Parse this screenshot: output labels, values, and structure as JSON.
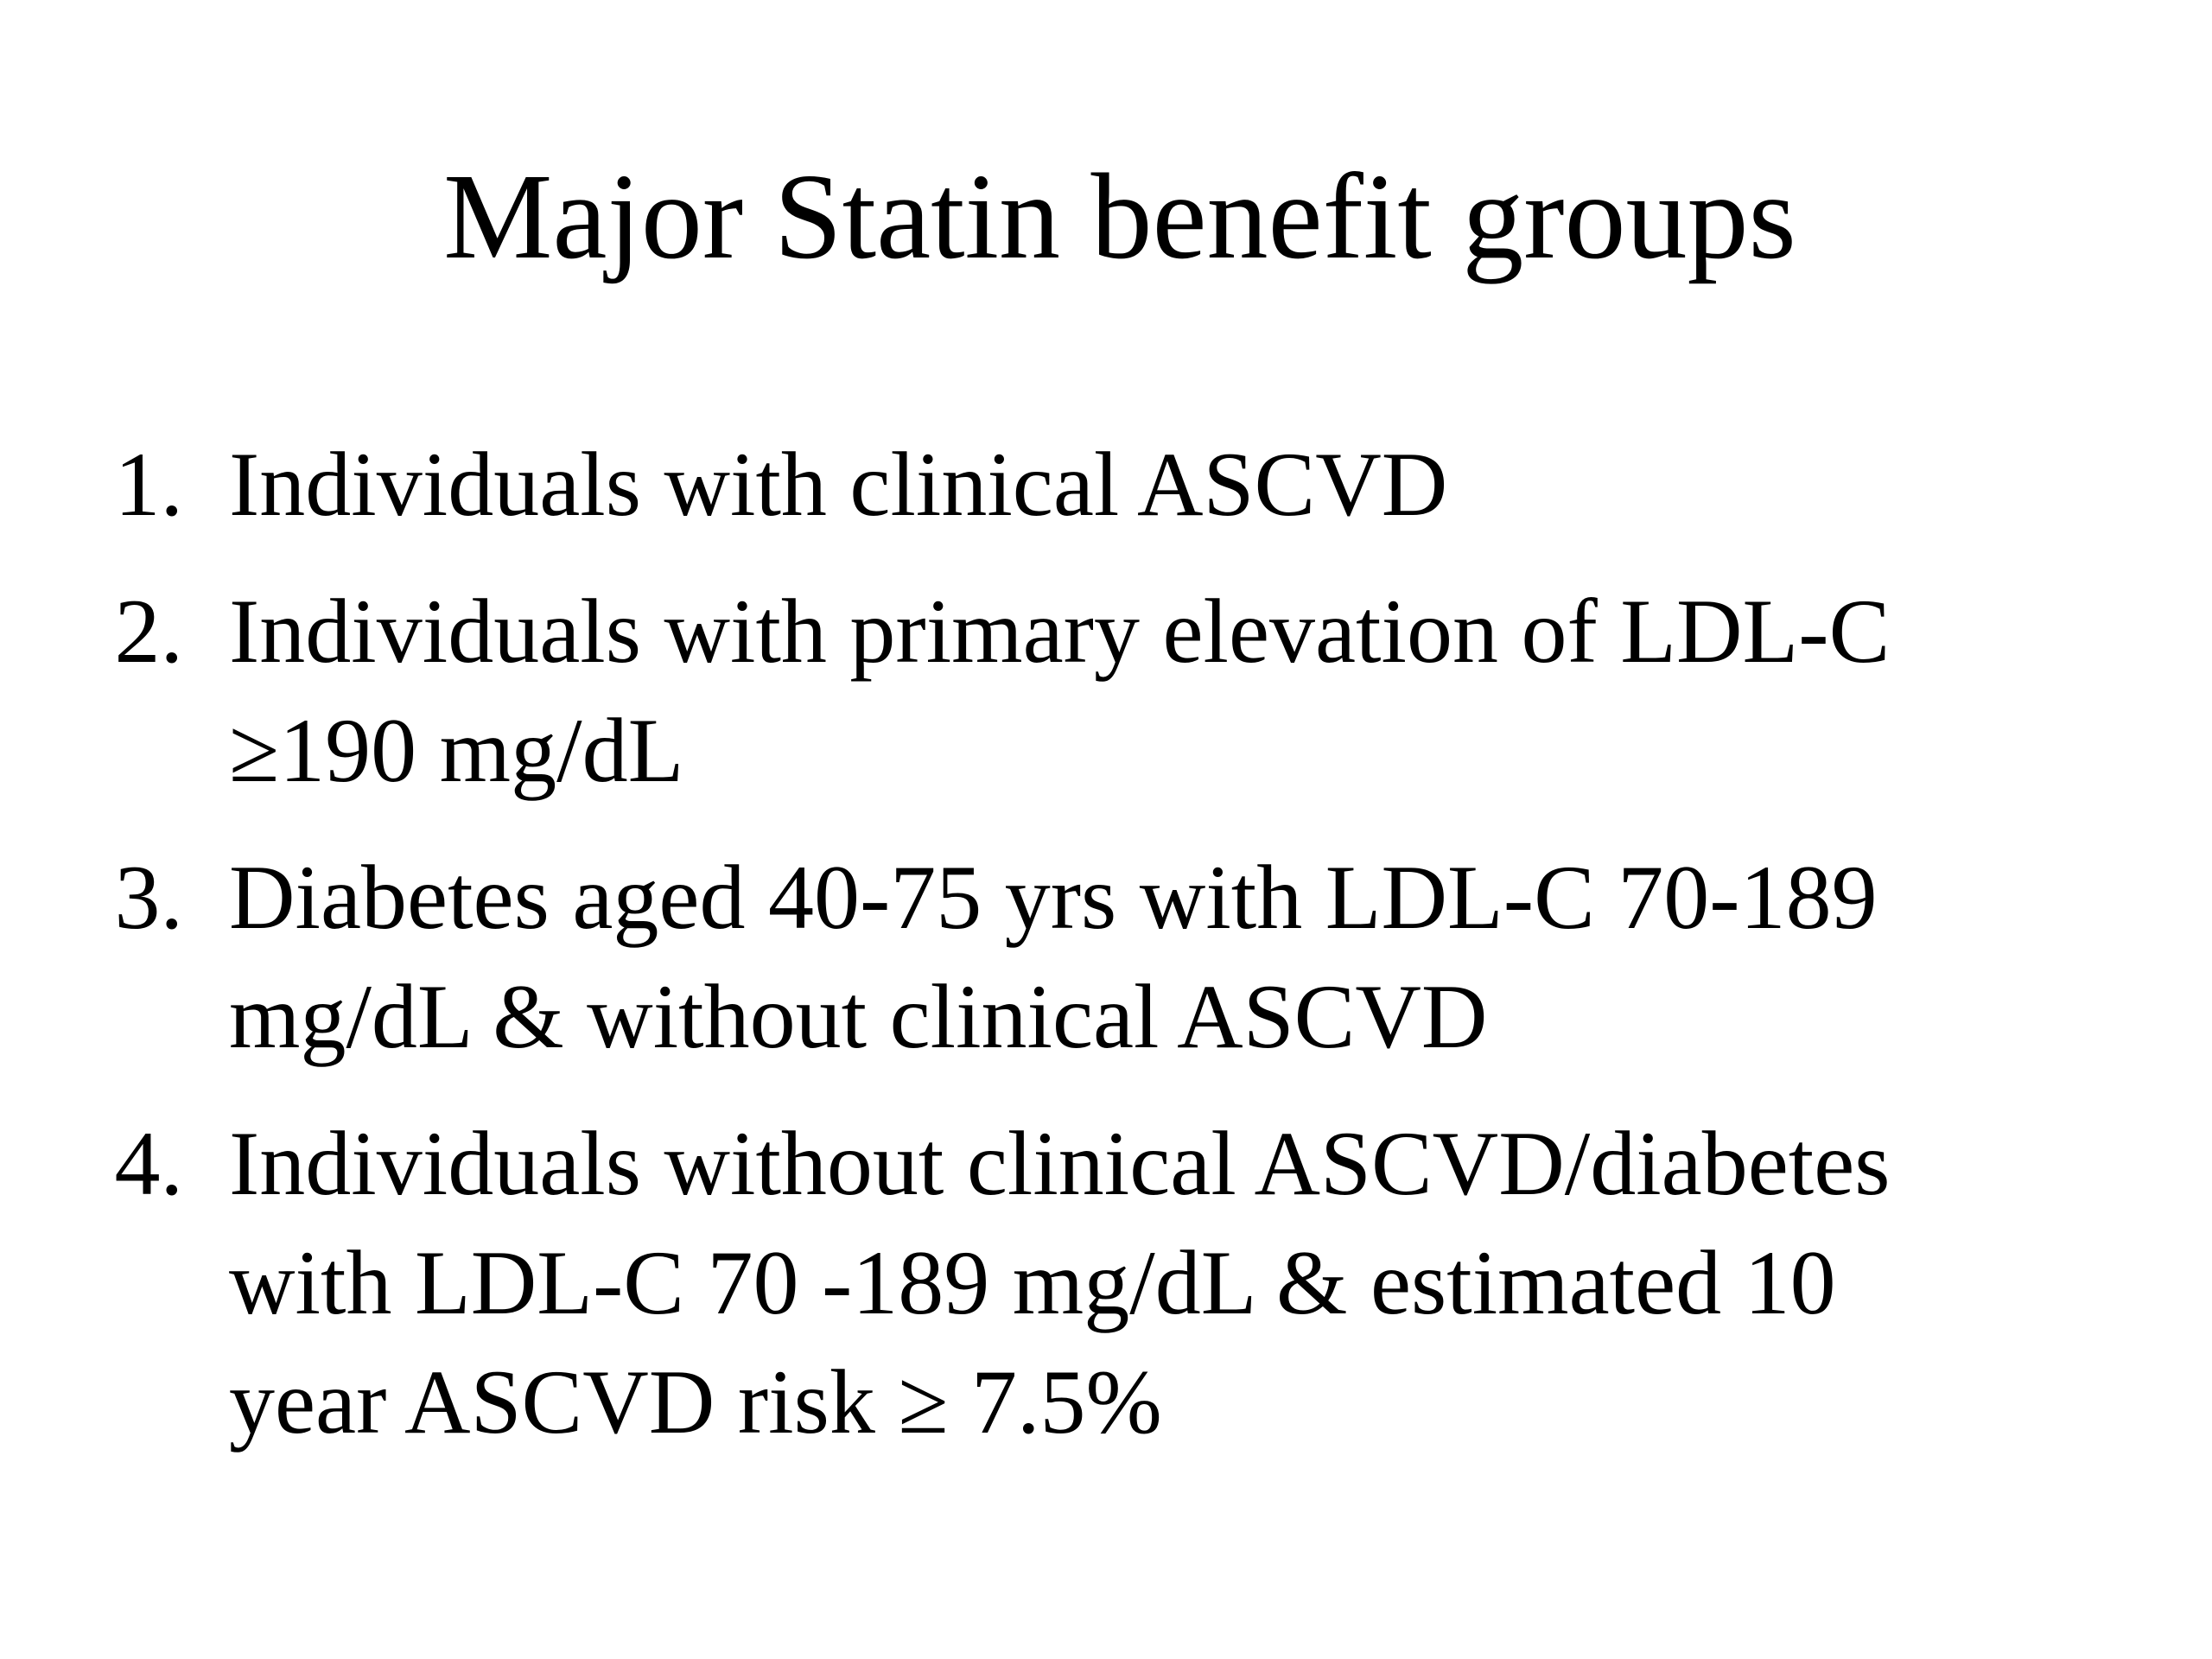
{
  "slide": {
    "title": "Major Statin benefit groups",
    "items": [
      {
        "number": "1.",
        "lines": [
          "Individuals with clinical ASCVD"
        ]
      },
      {
        "number": "2.",
        "lines": [
          "Individuals with primary elevation of LDL-C",
          "≥190 mg/dL"
        ]
      },
      {
        "number": "3.",
        "lines": [
          "Diabetes aged 40-75 yrs with LDL-C 70-189",
          "mg/dL & without clinical ASCVD"
        ]
      },
      {
        "number": "4.",
        "lines": [
          "Individuals without clinical ASCVD/diabetes",
          "with LDL-C 70 -189 mg/dL & estimated 10",
          "year ASCVD risk ≥ 7.5%"
        ]
      }
    ]
  }
}
